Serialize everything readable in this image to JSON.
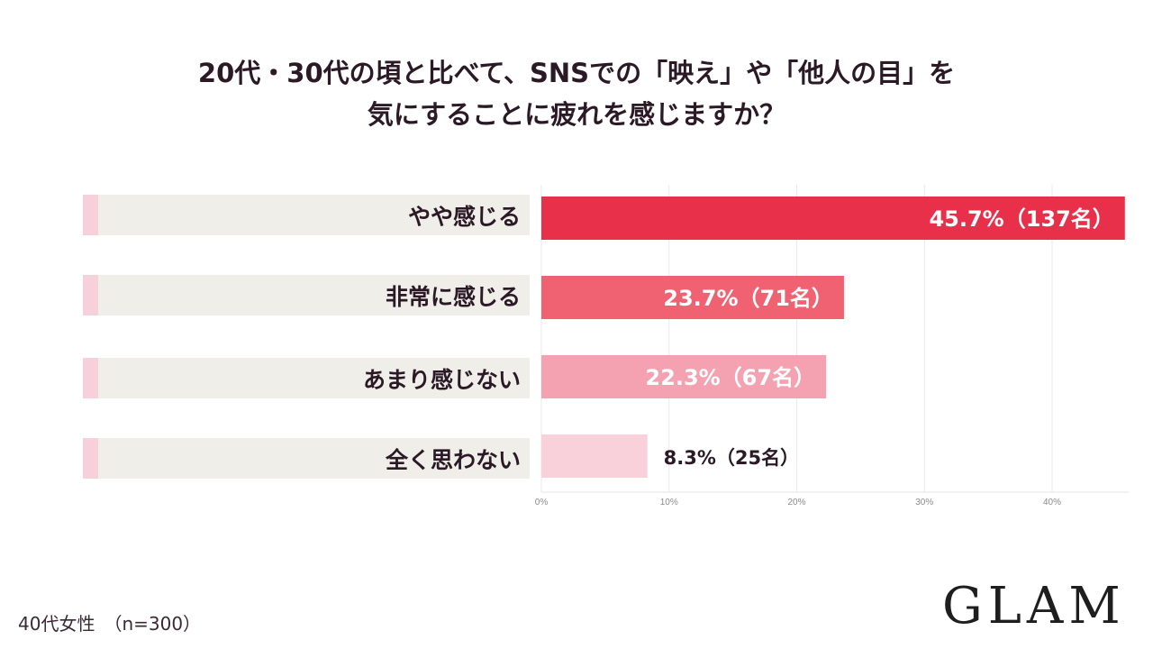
{
  "title": {
    "line1": "20代・30代の頃と比べて、SNSでの「映え」や「他人の目」を",
    "line2": "気にすることに疲れを感じますか？"
  },
  "footnote": "40代女性　（n=300）",
  "logo": "GLAM",
  "chart_data": {
    "type": "bar",
    "orientation": "horizontal",
    "categories": [
      "やや感じる",
      "非常に感じる",
      "あまり感じない",
      "全く思わない"
    ],
    "values": [
      45.7,
      23.7,
      22.3,
      8.3
    ],
    "data_labels": [
      "45.7%（137名）",
      "23.7%（71名）",
      "22.3%（67名）",
      "8.3%（25名）"
    ],
    "colors": [
      "#e8304b",
      "#f06272",
      "#f4a2b1",
      "#f8d1da"
    ],
    "label_colors": [
      "#ffffff",
      "#ffffff",
      "#ffffff",
      "#2b1a26"
    ],
    "x_ticks": [
      0,
      10,
      20,
      30,
      40
    ],
    "x_tick_labels": [
      "0%",
      "10%",
      "20%",
      "30%",
      "40%"
    ],
    "xlim": [
      0,
      46
    ],
    "grid": true,
    "title": "20代・30代の頃と比べて、SNSでの「映え」や「他人の目」を気にすることに疲れを感じますか？"
  }
}
